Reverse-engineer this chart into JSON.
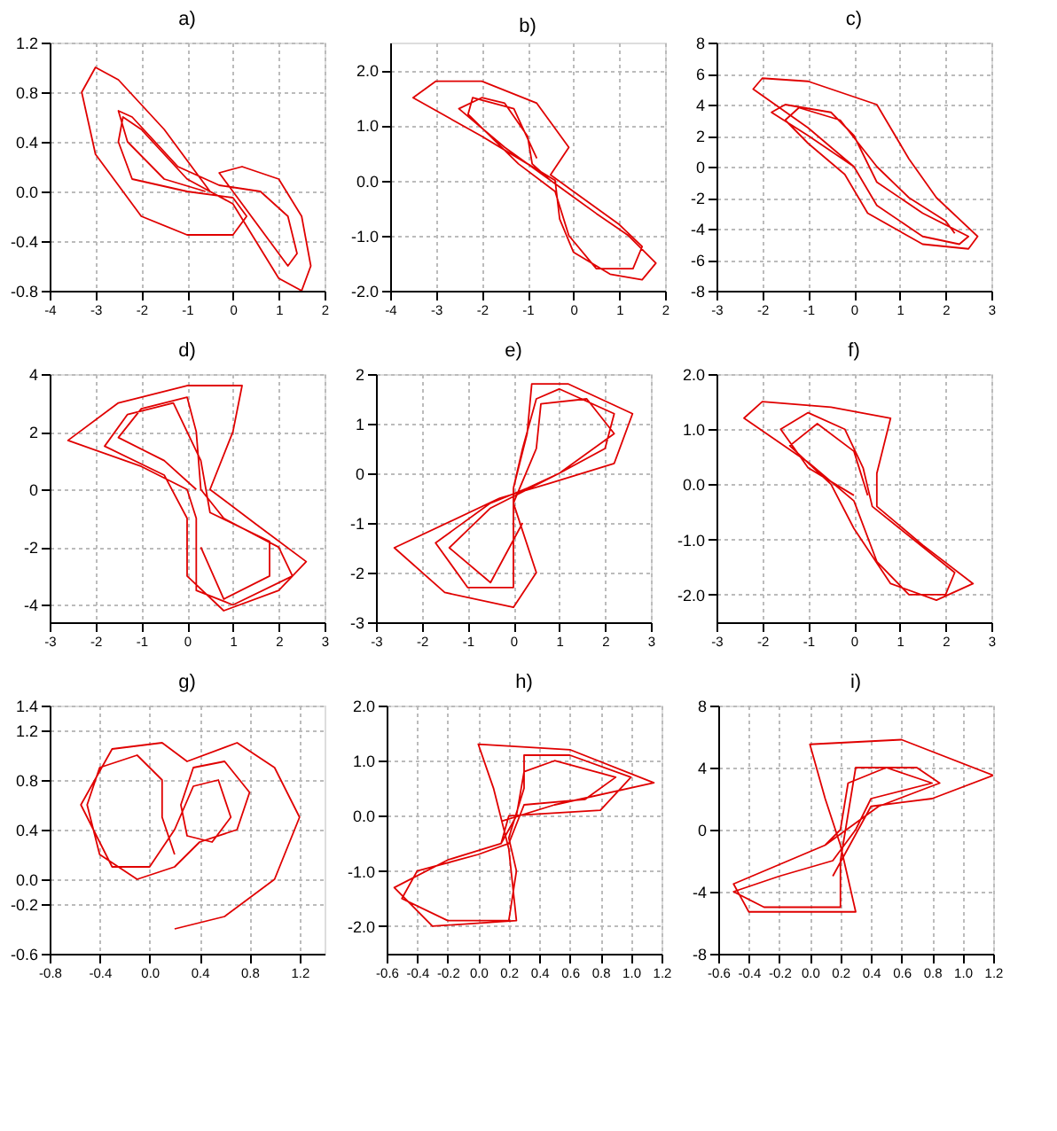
{
  "chart_data": [
    {
      "type": "line",
      "title": "a)",
      "xlim": [
        -4,
        2
      ],
      "ylim": [
        -0.8,
        1.2
      ],
      "xticks": [
        -4,
        -3,
        -2,
        -1,
        0,
        1,
        2
      ],
      "yticks": [
        {
          "value": -0.8,
          "label": "-0.8"
        },
        {
          "value": -0.4,
          "label": "-0.4"
        },
        {
          "value": 0,
          "label": "0.0"
        },
        {
          "value": 0.4,
          "label": "0.4"
        },
        {
          "value": 0.8,
          "label": "0.8"
        },
        {
          "value": 1.2,
          "label": "1.2"
        }
      ],
      "grid": true,
      "series": [
        {
          "color": "#e00000",
          "x": [
            -0.5,
            -1.5,
            -2.5,
            -3.0,
            -3.3,
            -3.0,
            -2.0,
            -1.0,
            0,
            0.3,
            0,
            -1,
            -2.2,
            -2.5,
            -2.4,
            -2.0,
            -1.0,
            -0.5,
            0,
            0.5,
            1.0,
            1.5,
            1.7,
            1.5,
            1.0,
            0.2,
            -0.3,
            0,
            0.8,
            1.2,
            1.4,
            1.2,
            0.6,
            -0.3,
            -1.2,
            -2.2,
            -2.5,
            -2.3,
            -1.5,
            -0.6
          ],
          "values": [
            0.0,
            0.5,
            0.9,
            1.0,
            0.8,
            0.3,
            -0.2,
            -0.35,
            -0.35,
            -0.2,
            -0.05,
            0.0,
            0.1,
            0.4,
            0.6,
            0.5,
            0.1,
            0.0,
            -0.1,
            -0.4,
            -0.7,
            -0.8,
            -0.6,
            -0.2,
            0.1,
            0.2,
            0.15,
            0,
            -0.4,
            -0.6,
            -0.5,
            -0.2,
            0.0,
            0.05,
            0.2,
            0.6,
            0.65,
            0.4,
            0.1,
            0.0
          ]
        }
      ]
    },
    {
      "type": "line",
      "title": "b)",
      "xlim": [
        -4,
        2
      ],
      "ylim": [
        -2,
        2.5
      ],
      "xticks": [
        -4,
        -3,
        -2,
        -1,
        0,
        1,
        2
      ],
      "yticks": [
        {
          "value": -2,
          "label": "-2.0"
        },
        {
          "value": -1,
          "label": "-1.0"
        },
        {
          "value": 0,
          "label": "0.0"
        },
        {
          "value": 1,
          "label": "1.0"
        },
        {
          "value": 2,
          "label": "2.0"
        }
      ],
      "grid": true,
      "series": [
        {
          "color": "#e00000",
          "x": [
            -0.5,
            -1.5,
            -2.5,
            -2.0,
            -1.5,
            -1.0,
            -0.9,
            -0.5,
            0,
            0.5,
            1.2,
            1.8,
            1.5,
            0.8,
            0,
            -0.3,
            -0.4,
            -1,
            -2,
            -3.5,
            -3,
            -2,
            -0.8,
            -0.1,
            -0.5,
            0,
            1,
            1.5,
            1.3,
            0.5,
            -0.1,
            -0.4,
            -1.2,
            -2.3,
            -2.2,
            -1.3,
            -0.8
          ],
          "values": [
            0.0,
            0.6,
            1.3,
            1.5,
            1.4,
            0.8,
            0.3,
            0.0,
            -0.3,
            -0.6,
            -1.0,
            -1.5,
            -1.8,
            -1.7,
            -1.3,
            -0.7,
            0,
            0.3,
            0.8,
            1.5,
            1.8,
            1.8,
            1.4,
            0.6,
            0.1,
            -0.2,
            -0.8,
            -1.2,
            -1.6,
            -1.6,
            -1.0,
            -0.2,
            0.3,
            1.2,
            1.5,
            1.3,
            0.4
          ]
        }
      ]
    },
    {
      "type": "line",
      "title": "c)",
      "xlim": [
        -3,
        3
      ],
      "ylim": [
        -8,
        8
      ],
      "xticks": [
        -3,
        -2,
        -1,
        0,
        1,
        2,
        3
      ],
      "yticks": [
        -8,
        -6,
        -4,
        -2,
        0,
        2,
        4,
        6,
        8
      ],
      "grid": true,
      "series": [
        {
          "color": "#e00000",
          "x": [
            0,
            -1,
            -1.8,
            -1.5,
            -0.5,
            0,
            0.5,
            1.5,
            2.5,
            2.3,
            1.5,
            0.5,
            0,
            -1,
            -2.2,
            -2,
            -1,
            0.5,
            1.2,
            1.8,
            2.7,
            2.5,
            1.5,
            0.3,
            -0.2,
            -1,
            -1.5,
            -1.2,
            -0.3,
            0.5,
            1.2,
            2,
            2.2
          ],
          "values": [
            0,
            2,
            3.5,
            4,
            3.5,
            2,
            -1,
            -3,
            -4.5,
            -5,
            -4.5,
            -2.5,
            0,
            2.5,
            5,
            5.7,
            5.5,
            4,
            0.5,
            -2,
            -4.5,
            -5.3,
            -5,
            -3,
            -0.5,
            1.5,
            3,
            3.8,
            3,
            0,
            -2,
            -3.5,
            -4.3
          ]
        }
      ]
    },
    {
      "type": "line",
      "title": "d)",
      "xlim": [
        -3,
        3
      ],
      "ylim": [
        -4.6,
        4
      ],
      "xticks": [
        -3,
        -2,
        -1,
        0,
        1,
        2,
        3
      ],
      "yticks": [
        -4,
        -2,
        0,
        2,
        4
      ],
      "grid": true,
      "series": [
        {
          "color": "#e00000",
          "x": [
            0.2,
            -0.5,
            -1.5,
            -1,
            0,
            0.2,
            0.3,
            0.8,
            2,
            2.3,
            1,
            0.2,
            0.2,
            0,
            -1,
            -2.6,
            -1.5,
            0,
            1.2,
            1,
            0.5,
            1.5,
            2.6,
            2,
            0.8,
            0,
            0,
            -0.5,
            -1.8,
            -1.3,
            -0.3,
            0.3,
            0.5,
            1.8,
            1.8,
            0.8,
            0.3
          ],
          "values": [
            0,
            1,
            1.8,
            2.8,
            3.2,
            2,
            0,
            -1,
            -2,
            -3,
            -4,
            -3.5,
            -1,
            0,
            0.8,
            1.7,
            3,
            3.6,
            3.6,
            2,
            0,
            -1.2,
            -2.5,
            -3.5,
            -4.2,
            -3,
            -1,
            0.5,
            1.5,
            2.6,
            3,
            1,
            -0.8,
            -1.8,
            -3,
            -3.8,
            -2
          ]
        }
      ]
    },
    {
      "type": "line",
      "title": "e)",
      "xlim": [
        -3,
        3
      ],
      "ylim": [
        -3,
        2
      ],
      "xticks": [
        -3,
        -2,
        -1,
        0,
        1,
        2,
        3
      ],
      "yticks": [
        -3,
        -2,
        -1,
        0,
        1,
        2
      ],
      "grid": true,
      "series": [
        {
          "color": "#e00000",
          "x": [
            0,
            0.2,
            0.5,
            1,
            2.2,
            2,
            1,
            0.3,
            -0.5,
            -1.7,
            -1,
            0,
            0,
            0,
            0.3,
            0.4,
            1.2,
            2.6,
            2.2,
            0.8,
            -0.3,
            -2.6,
            -1.5,
            0,
            0.5,
            0,
            0.5,
            0.6,
            1.6,
            2.2,
            1,
            -0.5,
            -1.4,
            -0.5,
            0.2
          ],
          "values": [
            -0.3,
            0.5,
            1.5,
            1.7,
            1.2,
            0.5,
            0,
            -0.3,
            -0.6,
            -1.4,
            -2.3,
            -2.3,
            -1,
            -0.3,
            0.8,
            1.8,
            1.8,
            1.2,
            0.2,
            -0.2,
            -0.5,
            -1.5,
            -2.4,
            -2.7,
            -2,
            -0.6,
            0.5,
            1.4,
            1.5,
            0.8,
            0,
            -0.7,
            -1.5,
            -2.2,
            -1
          ]
        }
      ]
    },
    {
      "type": "line",
      "title": "f)",
      "xlim": [
        -3,
        3
      ],
      "ylim": [
        -2.5,
        2
      ],
      "xticks": [
        -3,
        -2,
        -1,
        0,
        1,
        2,
        3
      ],
      "yticks": [
        {
          "value": -2,
          "label": "-2.0"
        },
        {
          "value": -1,
          "label": "-1.0"
        },
        {
          "value": 0,
          "label": "0.0"
        },
        {
          "value": 1,
          "label": "1.0"
        },
        {
          "value": 2,
          "label": "2.0"
        }
      ],
      "grid": true,
      "series": [
        {
          "color": "#e00000",
          "x": [
            0,
            -1,
            -1.6,
            -1,
            -0.2,
            0.2,
            0.4,
            1,
            2.2,
            2,
            1.2,
            0.5,
            0,
            -1,
            -2.4,
            -2,
            -0.5,
            0.8,
            0.5,
            0.5,
            1.5,
            2.6,
            1.8,
            0.8,
            0,
            -0.5,
            -1.4,
            -0.8,
            0,
            0.3
          ],
          "values": [
            -0.2,
            0.3,
            1,
            1.3,
            1,
            0.3,
            -0.4,
            -0.8,
            -1.6,
            -2,
            -2,
            -1.4,
            -0.3,
            0.4,
            1.2,
            1.5,
            1.4,
            1.2,
            0.2,
            -0.4,
            -1.1,
            -1.8,
            -2.1,
            -1.8,
            -0.8,
            0,
            0.7,
            1.1,
            0.6,
            -0.2
          ]
        }
      ]
    },
    {
      "type": "line",
      "title": "g)",
      "xlim": [
        -0.8,
        1.4
      ],
      "ylim": [
        -0.6,
        1.4
      ],
      "xticks": [
        {
          "value": -0.8,
          "label": "-0.8"
        },
        {
          "value": -0.4,
          "label": "-0.4"
        },
        {
          "value": 0,
          "label": "0.0"
        },
        {
          "value": 0.4,
          "label": "0.4"
        },
        {
          "value": 0.8,
          "label": "0.8"
        },
        {
          "value": 1.2,
          "label": "1.2"
        }
      ],
      "yticks": [
        {
          "value": -0.6,
          "label": "-0.6"
        },
        {
          "value": -0.2,
          "label": "-0.2"
        },
        {
          "value": 0,
          "label": "0.0"
        },
        {
          "value": 0.4,
          "label": "0.4"
        },
        {
          "value": 0.8,
          "label": "0.8"
        },
        {
          "value": 1.2,
          "label": "1.2"
        },
        {
          "value": 1.4,
          "label": "1.4"
        }
      ],
      "grid": true,
      "series": [
        {
          "color": "#e00000",
          "x": [
            0.2,
            0.1,
            0.1,
            -0.1,
            -0.4,
            -0.5,
            -0.4,
            -0.1,
            0.2,
            0.4,
            0.7,
            0.8,
            0.6,
            0.35,
            0.25,
            0.3,
            0.5,
            0.65,
            0.55,
            0.35,
            0.2,
            0,
            -0.3,
            -0.55,
            -0.3,
            0.1,
            0.3,
            0.7,
            1.0,
            1.2,
            1.0,
            0.6,
            0.2
          ],
          "values": [
            0.2,
            0.5,
            0.8,
            1.0,
            0.9,
            0.6,
            0.2,
            0.0,
            0.1,
            0.3,
            0.4,
            0.7,
            0.95,
            0.9,
            0.6,
            0.35,
            0.3,
            0.5,
            0.8,
            0.75,
            0.4,
            0.1,
            0.1,
            0.6,
            1.05,
            1.1,
            0.95,
            1.1,
            0.9,
            0.5,
            0.0,
            -0.3,
            -0.4
          ]
        }
      ]
    },
    {
      "type": "line",
      "title": "h)",
      "xlim": [
        -0.6,
        1.2
      ],
      "ylim": [
        -2.5,
        2
      ],
      "xticks": [
        {
          "value": -0.6,
          "label": "-0.6"
        },
        {
          "value": -0.4,
          "label": "-0.4"
        },
        {
          "value": -0.2,
          "label": "-0.2"
        },
        {
          "value": 0,
          "label": "0.0"
        },
        {
          "value": 0.2,
          "label": "0.2"
        },
        {
          "value": 0.4,
          "label": "0.4"
        },
        {
          "value": 0.6,
          "label": "0.6"
        },
        {
          "value": 0.8,
          "label": "0.8"
        },
        {
          "value": 1,
          "label": "1.0"
        },
        {
          "value": 1.2,
          "label": "1.2"
        }
      ],
      "yticks": [
        {
          "value": -2,
          "label": "-2.0"
        },
        {
          "value": -1,
          "label": "-1.0"
        },
        {
          "value": 0,
          "label": "0.0"
        },
        {
          "value": 1,
          "label": "1.0"
        },
        {
          "value": 2,
          "label": "2.0"
        }
      ],
      "grid": true,
      "series": [
        {
          "color": "#e00000",
          "x": [
            0.15,
            0.25,
            0.3,
            0.5,
            0.9,
            0.7,
            0.3,
            0.2,
            0,
            -0.4,
            -0.5,
            -0.2,
            0.2,
            0.25,
            0.2,
            0.3,
            0.3,
            0.6,
            1.0,
            0.8,
            0.2,
            0.15,
            -0.2,
            -0.55,
            -0.3,
            0.25,
            0.2,
            0.1,
            0,
            0.6,
            1.15,
            0.5,
            0.15
          ],
          "values": [
            -0.5,
            0,
            0.8,
            1.0,
            0.7,
            0.3,
            0.2,
            -0.5,
            -0.7,
            -1,
            -1.5,
            -1.9,
            -1.9,
            -1,
            -0.4,
            0.5,
            1.1,
            1.1,
            0.7,
            0.1,
            0,
            -0.5,
            -0.8,
            -1.3,
            -2.0,
            -1.9,
            -0.6,
            0.5,
            1.3,
            1.2,
            0.6,
            0.2,
            -0.1
          ]
        }
      ]
    },
    {
      "type": "line",
      "title": "i)",
      "xlim": [
        -0.6,
        1.2
      ],
      "ylim": [
        -8,
        8
      ],
      "xticks": [
        {
          "value": -0.6,
          "label": "-0.6"
        },
        {
          "value": -0.4,
          "label": "-0.4"
        },
        {
          "value": -0.2,
          "label": "-0.2"
        },
        {
          "value": 0,
          "label": "0.0"
        },
        {
          "value": 0.2,
          "label": "0.2"
        },
        {
          "value": 0.4,
          "label": "0.4"
        },
        {
          "value": 0.6,
          "label": "0.6"
        },
        {
          "value": 0.8,
          "label": "0.8"
        },
        {
          "value": 1,
          "label": "1.0"
        },
        {
          "value": 1.2,
          "label": "1.2"
        }
      ],
      "yticks": [
        -8,
        -4,
        0,
        4,
        8
      ],
      "grid": true,
      "series": [
        {
          "color": "#e00000",
          "x": [
            0.1,
            0.2,
            0.25,
            0.5,
            0.8,
            0.4,
            0.3,
            0.15,
            -0.2,
            -0.5,
            -0.3,
            0.2,
            0.2,
            0.25,
            0.3,
            0.7,
            0.85,
            0.45,
            0.1,
            -0.5,
            -0.4,
            0.3,
            0.2,
            0.1,
            0,
            0.6,
            1.2,
            0.8,
            0.4,
            0.15
          ],
          "values": [
            -1,
            0,
            3,
            4,
            3,
            2,
            0,
            -2,
            -3,
            -4,
            -5,
            -5,
            -2,
            1,
            4,
            4,
            3,
            1.5,
            -1,
            -3.5,
            -5.3,
            -5.3,
            -1,
            2,
            5.5,
            5.8,
            3.5,
            2,
            1.5,
            -3
          ]
        }
      ]
    }
  ]
}
